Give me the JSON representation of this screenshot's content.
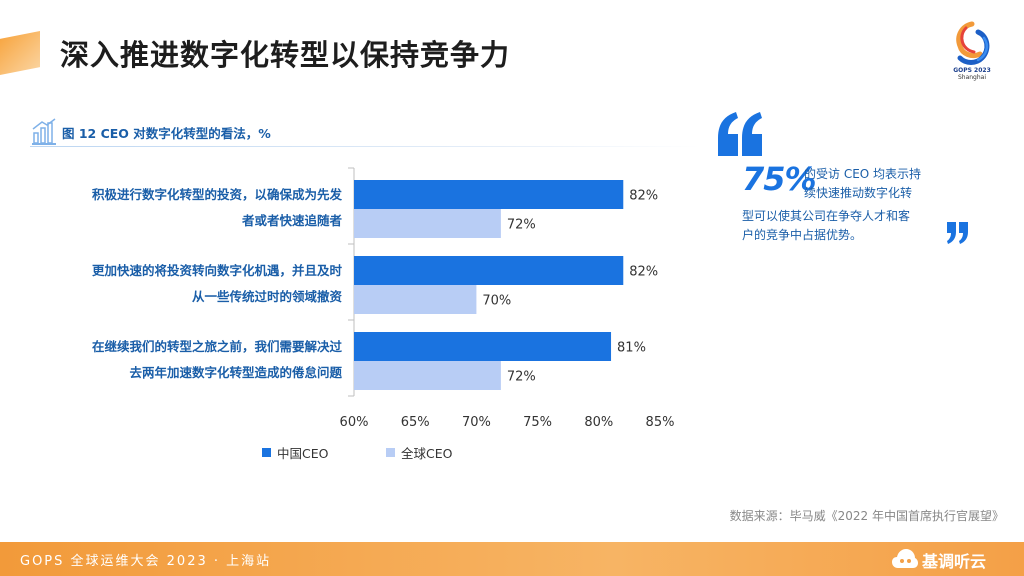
{
  "page": {
    "title": "深入推进数字化转型以保持竞争力",
    "logo_line1": "GOPS 2023",
    "logo_line2": "Shanghai"
  },
  "figure": {
    "title": "图 12  CEO 对数字化转型的看法，%"
  },
  "chart_data": {
    "type": "bar",
    "orientation": "horizontal",
    "categories": [
      [
        "积极进行数字化转型的投资，以确保成为先发",
        "者或者快速追随者"
      ],
      [
        "更加快速的将投资转向数字化机遇，并且及时",
        "从一些传统过时的领域撤资"
      ],
      [
        "在继续我们的转型之旅之前，我们需要解决过",
        "去两年加速数字化转型造成的倦怠问题"
      ]
    ],
    "series": [
      {
        "name": "中国CEO",
        "values": [
          82,
          82,
          81
        ],
        "color": "#1a73e0"
      },
      {
        "name": "全球CEO",
        "values": [
          72,
          70,
          72
        ],
        "color": "#b8cdf5"
      }
    ],
    "value_suffix": "%",
    "xlim": [
      60,
      85
    ],
    "xticks": [
      "60%",
      "65%",
      "70%",
      "75%",
      "80%",
      "85%"
    ],
    "xtick_values": [
      60,
      65,
      70,
      75,
      80,
      85
    ],
    "grid": false,
    "legend": "bottom-left"
  },
  "quote": {
    "highlight": "75%",
    "line1": "的受访 CEO 均表示持",
    "line2": "续快速推动数字化转",
    "line3": "型可以使其公司在争夺人才和客",
    "line4": "户的竞争中占据优势。"
  },
  "source": "数据来源：毕马威《2022 年中国首席执行官展望》",
  "footer": {
    "event": "GOPS 全球运维大会 2023 · 上海站",
    "brand": "基调听云"
  }
}
